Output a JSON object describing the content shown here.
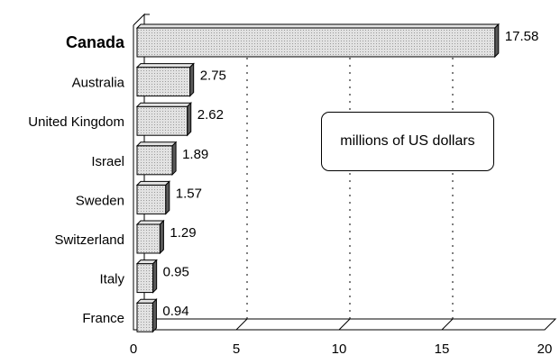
{
  "chart_data": {
    "type": "bar",
    "orientation": "horizontal",
    "style": "3d",
    "categories": [
      "Canada",
      "Australia",
      "United Kingdom",
      "Israel",
      "Sweden",
      "Switzerland",
      "Italy",
      "France"
    ],
    "values": [
      17.58,
      2.75,
      2.62,
      1.89,
      1.57,
      1.29,
      0.95,
      0.94
    ],
    "value_labels": [
      "17.58",
      "2.75",
      "2.62",
      "1.89",
      "1.57",
      "1.29",
      "0.95",
      "0.94"
    ],
    "emphasized_category": "Canada",
    "x_ticks": [
      "0",
      "5",
      "10",
      "15",
      "20"
    ],
    "xlim": [
      0,
      20
    ],
    "grid": "vertical dashed",
    "annotation": "millions of US dollars",
    "title": "",
    "xlabel": "",
    "ylabel": "",
    "colors": {
      "bar_fill": "#d9d9d9",
      "bar_top": "#e4e4e4",
      "bar_side": "#5a5a5a",
      "axis": "#000000"
    }
  }
}
